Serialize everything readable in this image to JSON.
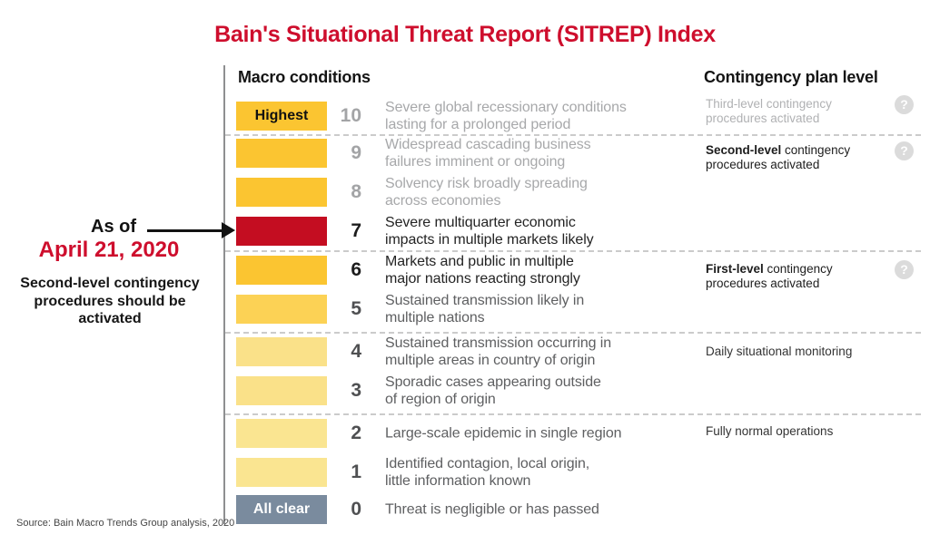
{
  "title": "Bain's Situational Threat Report (SITREP) Index",
  "columns": {
    "macro": "Macro conditions",
    "contingency": "Contingency plan level"
  },
  "annotation": {
    "as_of": "As of",
    "date": "April 21, 2020",
    "note": "Second-level contingency\nprocedures should be\nactivated"
  },
  "source": "Source: Bain Macro Trends Group analysis, 2020",
  "icons": {
    "help": "?"
  },
  "colors": {
    "accent_red": "#CE0E2D",
    "bar_red": "#C40D21",
    "bar_gold": "#FBC531",
    "bar_yellow": "#FCD255",
    "bar_pale_yellow": "#FAE189",
    "bar_paler_yellow": "#FAE591",
    "bar_slate": "#7A8B9E"
  },
  "levels": [
    {
      "value": "10",
      "bar_label": "Highest",
      "bar_label_color": "#111111",
      "bar_color": "#FBC531",
      "emphasis": "muted",
      "description": "Severe global recessionary conditions\nlasting for a prolonged period"
    },
    {
      "value": "9",
      "bar_color": "#FBC531",
      "emphasis": "muted",
      "description": "Widespread cascading business\nfailures imminent or ongoing"
    },
    {
      "value": "8",
      "bar_color": "#FBC531",
      "emphasis": "muted",
      "description": "Solvency risk broadly spreading\nacross economies"
    },
    {
      "value": "7",
      "bar_color": "#C40D21",
      "emphasis": "strong",
      "current": true,
      "description": "Severe multiquarter economic\nimpacts in multiple markets likely"
    },
    {
      "value": "6",
      "bar_color": "#FBC531",
      "emphasis": "strong",
      "description": "Markets and public in multiple\nmajor nations reacting strongly"
    },
    {
      "value": "5",
      "bar_color": "#FCD255",
      "emphasis": "normal",
      "description": "Sustained transmission likely in\nmultiple nations"
    },
    {
      "value": "4",
      "bar_color": "#FAE189",
      "emphasis": "normal",
      "description": "Sustained transmission occurring in\nmultiple areas in country of origin"
    },
    {
      "value": "3",
      "bar_color": "#FAE189",
      "emphasis": "normal",
      "description": "Sporadic cases appearing outside\nof region of origin"
    },
    {
      "value": "2",
      "bar_color": "#FAE591",
      "emphasis": "normal",
      "description": "Large-scale epidemic in single region"
    },
    {
      "value": "1",
      "bar_color": "#FAE591",
      "emphasis": "normal",
      "description": "Identified contagion, local origin,\nlittle information known"
    },
    {
      "value": "0",
      "bar_label": "All clear",
      "bar_label_color": "#FFFFFF",
      "bar_color": "#7A8B9E",
      "emphasis": "normal",
      "description": "Threat is negligible or has passed"
    }
  ],
  "contingency": {
    "items": [
      {
        "lead": "",
        "text": "Third-level contingency\nprocedures activated",
        "emphasis": "muted",
        "help": true
      },
      {
        "lead": "Second-level",
        "text": " contingency\nprocedures activated",
        "emphasis": "strong",
        "help": true
      },
      {
        "lead": "First-level",
        "text": " contingency\nprocedures activated",
        "emphasis": "strong",
        "help": true
      },
      {
        "lead": "",
        "text": "Daily situational monitoring",
        "emphasis": "normal",
        "help": false
      },
      {
        "lead": "",
        "text": "Fully normal operations",
        "emphasis": "normal",
        "help": false
      }
    ]
  },
  "chart_data": {
    "type": "table",
    "title": "Bain's Situational Threat Report (SITREP) Index",
    "current_level": 7,
    "as_of": "April 21, 2020",
    "categories": [
      10,
      9,
      8,
      7,
      6,
      5,
      4,
      3,
      2,
      1,
      0
    ],
    "macro_conditions": [
      "Severe global recessionary conditions lasting for a prolonged period",
      "Widespread cascading business failures imminent or ongoing",
      "Solvency risk broadly spreading across economies",
      "Severe multiquarter economic impacts in multiple markets likely",
      "Markets and public in multiple major nations reacting strongly",
      "Sustained transmission likely in multiple nations",
      "Sustained transmission occurring in multiple areas in country of origin",
      "Sporadic cases appearing outside of region of origin",
      "Large-scale epidemic in single region",
      "Identified contagion, local origin, little information known",
      "Threat is negligible or has passed"
    ],
    "contingency_groups": [
      {
        "levels": [
          10
        ],
        "label": "Third-level contingency procedures activated"
      },
      {
        "levels": [
          9,
          8,
          7
        ],
        "label": "Second-level contingency procedures activated"
      },
      {
        "levels": [
          6,
          5
        ],
        "label": "First-level contingency procedures activated"
      },
      {
        "levels": [
          4,
          3
        ],
        "label": "Daily situational monitoring"
      },
      {
        "levels": [
          2,
          1,
          0
        ],
        "label": "Fully normal operations"
      }
    ],
    "scale_endpoints": {
      "top_label": "Highest",
      "bottom_label": "All clear"
    }
  }
}
